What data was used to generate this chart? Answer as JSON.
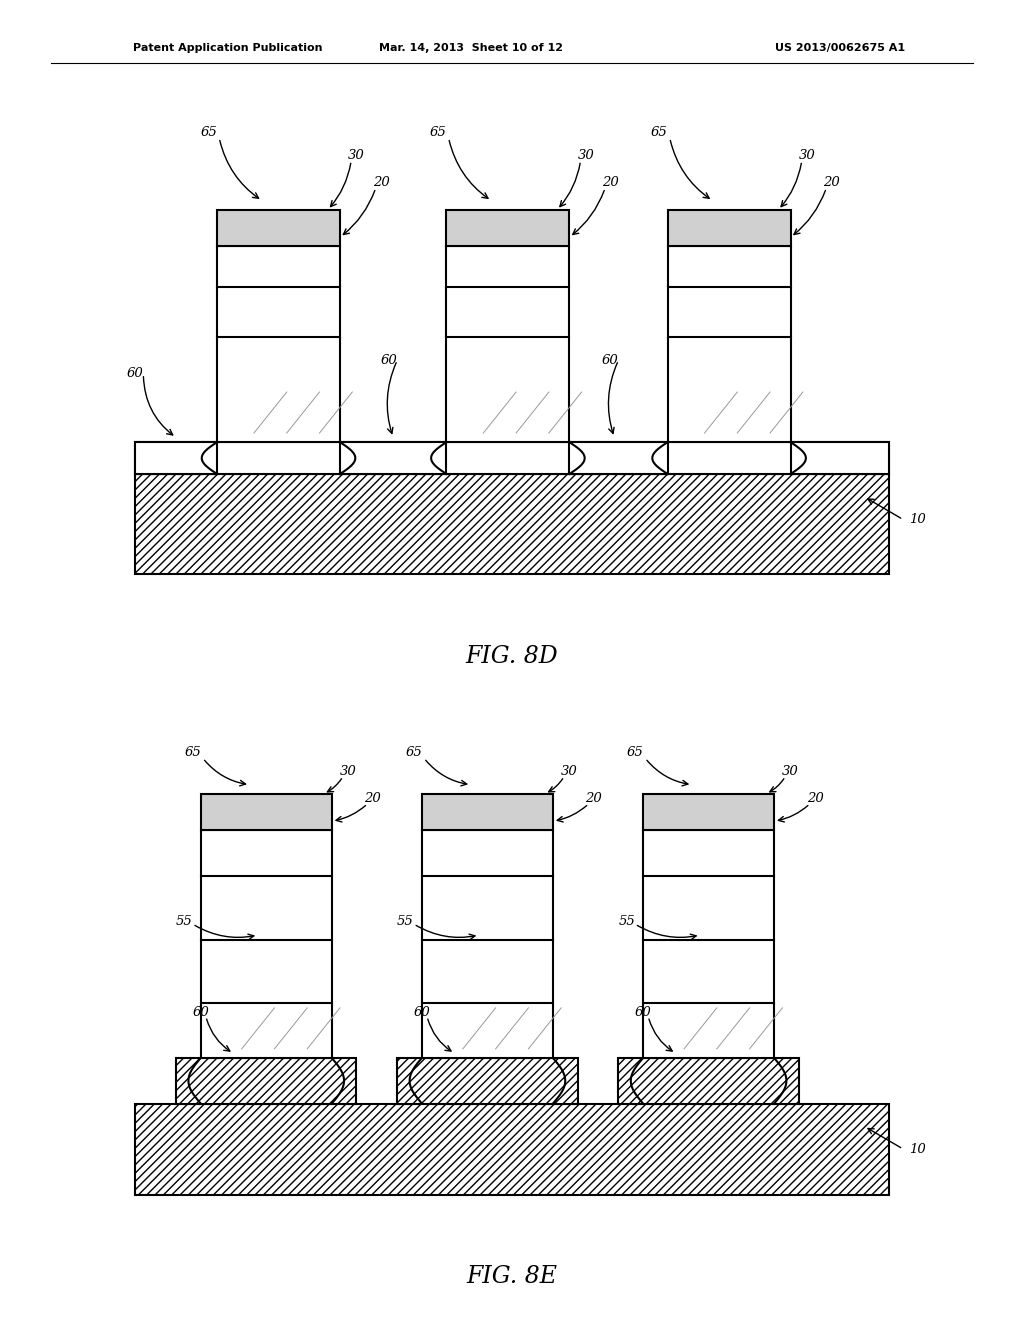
{
  "bg_color": "#ffffff",
  "header_left": "Patent Application Publication",
  "header_mid": "Mar. 14, 2013  Sheet 10 of 12",
  "header_right": "US 2013/0062675 A1",
  "fig8d_caption": "FIG. 8D",
  "fig8e_caption": "FIG. 8E",
  "line_color": "#000000"
}
